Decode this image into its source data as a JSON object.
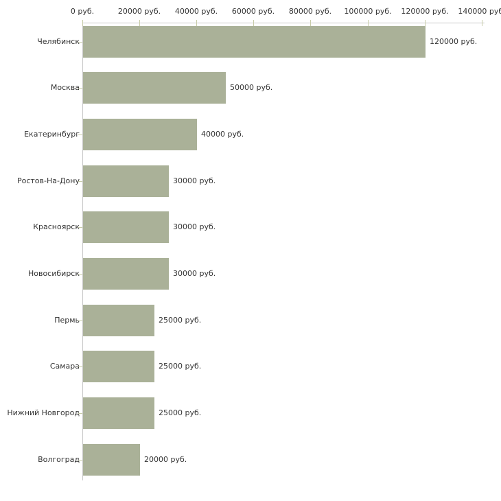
{
  "chart_data": {
    "type": "bar",
    "orientation": "horizontal",
    "title": "",
    "categories": [
      "Челябинск",
      "Москва",
      "Екатеринбург",
      "Ростов-На-Дону",
      "Красноярск",
      "Новосибирск",
      "Пермь",
      "Самара",
      "Нижний Новгород",
      "Волгоград"
    ],
    "values": [
      120000,
      50000,
      40000,
      30000,
      30000,
      30000,
      25000,
      25000,
      25000,
      20000
    ],
    "value_labels": [
      "120000 руб.",
      "50000 руб.",
      "40000 руб.",
      "30000 руб.",
      "30000 руб.",
      "30000 руб.",
      "25000 руб.",
      "25000 руб.",
      "25000 руб.",
      "20000 руб."
    ],
    "x_axis": {
      "position": "top",
      "range": [
        0,
        140000
      ],
      "tick_values": [
        0,
        20000,
        40000,
        60000,
        80000,
        100000,
        120000,
        140000
      ],
      "tick_labels": [
        "0 руб.",
        "20000 руб.",
        "40000 руб.",
        "60000 руб.",
        "80000 руб.",
        "100000 руб.",
        "120000 руб.",
        "140000 руб."
      ]
    },
    "grid": false,
    "legend": null,
    "colors": {
      "bar": "#aab198",
      "axis_line": "#c9c9c9",
      "tick": "#c8cca9",
      "text": "#333333",
      "background": "#ffffff"
    }
  }
}
